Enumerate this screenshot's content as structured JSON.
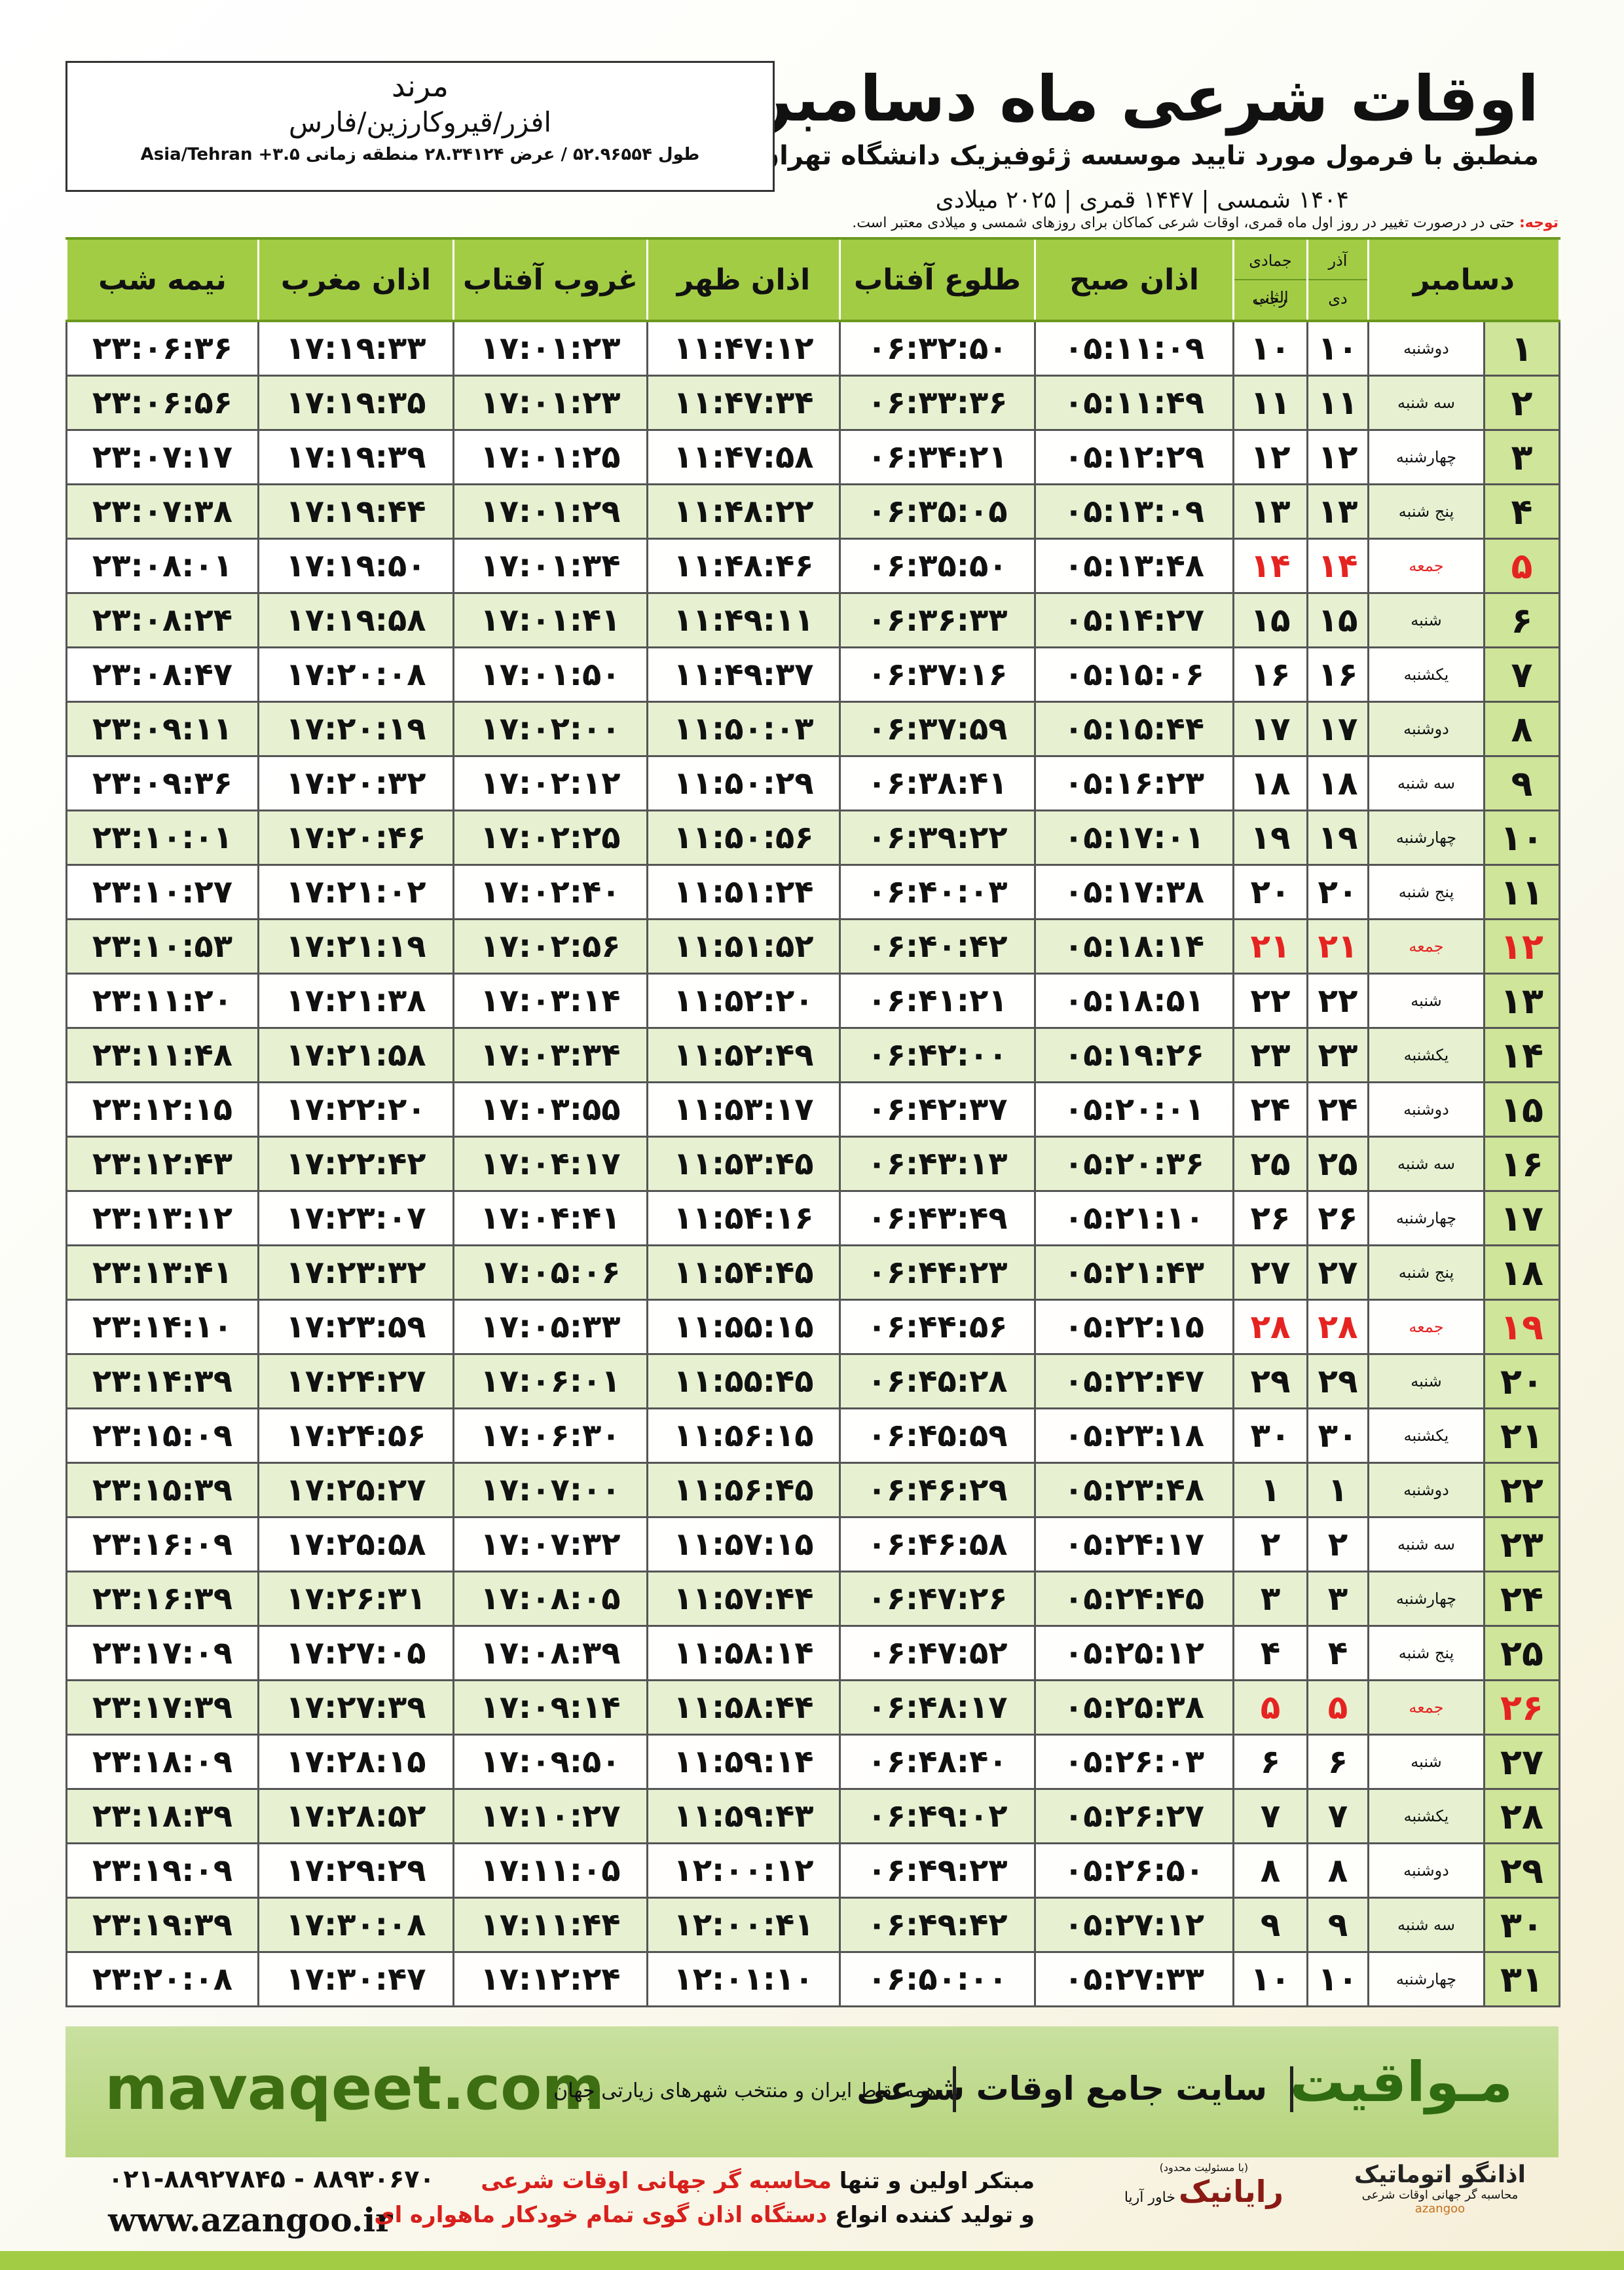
{
  "header": {
    "title": "اوقات شرعی ماه دسامبر",
    "subtitle": "منطبق با فرمول مورد تایید موسسه ژئوفیزیک دانشگاه تهران",
    "dates": "۱۴۰۴ شمسی | ۱۴۴۷ قمری | ۲۰۲۵ میلادی"
  },
  "location": {
    "city": "مرند",
    "path": "افزر/قیروکارزین/فارس",
    "coords": "طول ۵۲.۹۶۵۵۴ / عرض ۲۸.۳۴۱۲۴ منطقه زمانی ۳.۵+ Asia/Tehran"
  },
  "note": {
    "label": "توجه:",
    "text": "حتی در درصورت تغییر در روز اول ماه قمری، اوقات شرعی کماکان برای روزهای شمسی و میلادی معتبر است."
  },
  "table": {
    "headers": [
      "دسامبر",
      {
        "top": "آذر",
        "bottom": "دی"
      },
      {
        "top": "جمادی الثانی",
        "bottom": "رجب"
      },
      "اذان صبح",
      "طلوع آفتاب",
      "اذان ظهر",
      "غروب آفتاب",
      "اذان مغرب",
      "نیمه شب"
    ],
    "rows": [
      [
        "۱",
        "دوشنبه",
        "۱۰",
        "۱۰",
        "۰۵:۱۱:۰۹",
        "۰۶:۳۲:۵۰",
        "۱۱:۴۷:۱۲",
        "۱۷:۰۱:۲۳",
        "۱۷:۱۹:۳۳",
        "۲۳:۰۶:۳۶"
      ],
      [
        "۲",
        "سه شنبه",
        "۱۱",
        "۱۱",
        "۰۵:۱۱:۴۹",
        "۰۶:۳۳:۳۶",
        "۱۱:۴۷:۳۴",
        "۱۷:۰۱:۲۳",
        "۱۷:۱۹:۳۵",
        "۲۳:۰۶:۵۶"
      ],
      [
        "۳",
        "چهارشنبه",
        "۱۲",
        "۱۲",
        "۰۵:۱۲:۲۹",
        "۰۶:۳۴:۲۱",
        "۱۱:۴۷:۵۸",
        "۱۷:۰۱:۲۵",
        "۱۷:۱۹:۳۹",
        "۲۳:۰۷:۱۷"
      ],
      [
        "۴",
        "پنج شنبه",
        "۱۳",
        "۱۳",
        "۰۵:۱۳:۰۹",
        "۰۶:۳۵:۰۵",
        "۱۱:۴۸:۲۲",
        "۱۷:۰۱:۲۹",
        "۱۷:۱۹:۴۴",
        "۲۳:۰۷:۳۸"
      ],
      [
        "۵",
        "جمعه",
        "۱۴",
        "۱۴",
        "۰۵:۱۳:۴۸",
        "۰۶:۳۵:۵۰",
        "۱۱:۴۸:۴۶",
        "۱۷:۰۱:۳۴",
        "۱۷:۱۹:۵۰",
        "۲۳:۰۸:۰۱"
      ],
      [
        "۶",
        "شنبه",
        "۱۵",
        "۱۵",
        "۰۵:۱۴:۲۷",
        "۰۶:۳۶:۳۳",
        "۱۱:۴۹:۱۱",
        "۱۷:۰۱:۴۱",
        "۱۷:۱۹:۵۸",
        "۲۳:۰۸:۲۴"
      ],
      [
        "۷",
        "یکشنبه",
        "۱۶",
        "۱۶",
        "۰۵:۱۵:۰۶",
        "۰۶:۳۷:۱۶",
        "۱۱:۴۹:۳۷",
        "۱۷:۰۱:۵۰",
        "۱۷:۲۰:۰۸",
        "۲۳:۰۸:۴۷"
      ],
      [
        "۸",
        "دوشنبه",
        "۱۷",
        "۱۷",
        "۰۵:۱۵:۴۴",
        "۰۶:۳۷:۵۹",
        "۱۱:۵۰:۰۳",
        "۱۷:۰۲:۰۰",
        "۱۷:۲۰:۱۹",
        "۲۳:۰۹:۱۱"
      ],
      [
        "۹",
        "سه شنبه",
        "۱۸",
        "۱۸",
        "۰۵:۱۶:۲۳",
        "۰۶:۳۸:۴۱",
        "۱۱:۵۰:۲۹",
        "۱۷:۰۲:۱۲",
        "۱۷:۲۰:۳۲",
        "۲۳:۰۹:۳۶"
      ],
      [
        "۱۰",
        "چهارشنبه",
        "۱۹",
        "۱۹",
        "۰۵:۱۷:۰۱",
        "۰۶:۳۹:۲۲",
        "۱۱:۵۰:۵۶",
        "۱۷:۰۲:۲۵",
        "۱۷:۲۰:۴۶",
        "۲۳:۱۰:۰۱"
      ],
      [
        "۱۱",
        "پنج شنبه",
        "۲۰",
        "۲۰",
        "۰۵:۱۷:۳۸",
        "۰۶:۴۰:۰۳",
        "۱۱:۵۱:۲۴",
        "۱۷:۰۲:۴۰",
        "۱۷:۲۱:۰۲",
        "۲۳:۱۰:۲۷"
      ],
      [
        "۱۲",
        "جمعه",
        "۲۱",
        "۲۱",
        "۰۵:۱۸:۱۴",
        "۰۶:۴۰:۴۲",
        "۱۱:۵۱:۵۲",
        "۱۷:۰۲:۵۶",
        "۱۷:۲۱:۱۹",
        "۲۳:۱۰:۵۳"
      ],
      [
        "۱۳",
        "شنبه",
        "۲۲",
        "۲۲",
        "۰۵:۱۸:۵۱",
        "۰۶:۴۱:۲۱",
        "۱۱:۵۲:۲۰",
        "۱۷:۰۳:۱۴",
        "۱۷:۲۱:۳۸",
        "۲۳:۱۱:۲۰"
      ],
      [
        "۱۴",
        "یکشنبه",
        "۲۳",
        "۲۳",
        "۰۵:۱۹:۲۶",
        "۰۶:۴۲:۰۰",
        "۱۱:۵۲:۴۹",
        "۱۷:۰۳:۳۴",
        "۱۷:۲۱:۵۸",
        "۲۳:۱۱:۴۸"
      ],
      [
        "۱۵",
        "دوشنبه",
        "۲۴",
        "۲۴",
        "۰۵:۲۰:۰۱",
        "۰۶:۴۲:۳۷",
        "۱۱:۵۳:۱۷",
        "۱۷:۰۳:۵۵",
        "۱۷:۲۲:۲۰",
        "۲۳:۱۲:۱۵"
      ],
      [
        "۱۶",
        "سه شنبه",
        "۲۵",
        "۲۵",
        "۰۵:۲۰:۳۶",
        "۰۶:۴۳:۱۳",
        "۱۱:۵۳:۴۵",
        "۱۷:۰۴:۱۷",
        "۱۷:۲۲:۴۲",
        "۲۳:۱۲:۴۳"
      ],
      [
        "۱۷",
        "چهارشنبه",
        "۲۶",
        "۲۶",
        "۰۵:۲۱:۱۰",
        "۰۶:۴۳:۴۹",
        "۱۱:۵۴:۱۶",
        "۱۷:۰۴:۴۱",
        "۱۷:۲۳:۰۷",
        "۲۳:۱۳:۱۲"
      ],
      [
        "۱۸",
        "پنج شنبه",
        "۲۷",
        "۲۷",
        "۰۵:۲۱:۴۳",
        "۰۶:۴۴:۲۳",
        "۱۱:۵۴:۴۵",
        "۱۷:۰۵:۰۶",
        "۱۷:۲۳:۳۲",
        "۲۳:۱۳:۴۱"
      ],
      [
        "۱۹",
        "جمعه",
        "۲۸",
        "۲۸",
        "۰۵:۲۲:۱۵",
        "۰۶:۴۴:۵۶",
        "۱۱:۵۵:۱۵",
        "۱۷:۰۵:۳۳",
        "۱۷:۲۳:۵۹",
        "۲۳:۱۴:۱۰"
      ],
      [
        "۲۰",
        "شنبه",
        "۲۹",
        "۲۹",
        "۰۵:۲۲:۴۷",
        "۰۶:۴۵:۲۸",
        "۱۱:۵۵:۴۵",
        "۱۷:۰۶:۰۱",
        "۱۷:۲۴:۲۷",
        "۲۳:۱۴:۳۹"
      ],
      [
        "۲۱",
        "یکشنبه",
        "۳۰",
        "۳۰",
        "۰۵:۲۳:۱۸",
        "۰۶:۴۵:۵۹",
        "۱۱:۵۶:۱۵",
        "۱۷:۰۶:۳۰",
        "۱۷:۲۴:۵۶",
        "۲۳:۱۵:۰۹"
      ],
      [
        "۲۲",
        "دوشنبه",
        "۱",
        "۱",
        "۰۵:۲۳:۴۸",
        "۰۶:۴۶:۲۹",
        "۱۱:۵۶:۴۵",
        "۱۷:۰۷:۰۰",
        "۱۷:۲۵:۲۷",
        "۲۳:۱۵:۳۹"
      ],
      [
        "۲۳",
        "سه شنبه",
        "۲",
        "۲",
        "۰۵:۲۴:۱۷",
        "۰۶:۴۶:۵۸",
        "۱۱:۵۷:۱۵",
        "۱۷:۰۷:۳۲",
        "۱۷:۲۵:۵۸",
        "۲۳:۱۶:۰۹"
      ],
      [
        "۲۴",
        "چهارشنبه",
        "۳",
        "۳",
        "۰۵:۲۴:۴۵",
        "۰۶:۴۷:۲۶",
        "۱۱:۵۷:۴۴",
        "۱۷:۰۸:۰۵",
        "۱۷:۲۶:۳۱",
        "۲۳:۱۶:۳۹"
      ],
      [
        "۲۵",
        "پنج شنبه",
        "۴",
        "۴",
        "۰۵:۲۵:۱۲",
        "۰۶:۴۷:۵۲",
        "۱۱:۵۸:۱۴",
        "۱۷:۰۸:۳۹",
        "۱۷:۲۷:۰۵",
        "۲۳:۱۷:۰۹"
      ],
      [
        "۲۶",
        "جمعه",
        "۵",
        "۵",
        "۰۵:۲۵:۳۸",
        "۰۶:۴۸:۱۷",
        "۱۱:۵۸:۴۴",
        "۱۷:۰۹:۱۴",
        "۱۷:۲۷:۳۹",
        "۲۳:۱۷:۳۹"
      ],
      [
        "۲۷",
        "شنبه",
        "۶",
        "۶",
        "۰۵:۲۶:۰۳",
        "۰۶:۴۸:۴۰",
        "۱۱:۵۹:۱۴",
        "۱۷:۰۹:۵۰",
        "۱۷:۲۸:۱۵",
        "۲۳:۱۸:۰۹"
      ],
      [
        "۲۸",
        "یکشنبه",
        "۷",
        "۷",
        "۰۵:۲۶:۲۷",
        "۰۶:۴۹:۰۲",
        "۱۱:۵۹:۴۳",
        "۱۷:۱۰:۲۷",
        "۱۷:۲۸:۵۲",
        "۲۳:۱۸:۳۹"
      ],
      [
        "۲۹",
        "دوشنبه",
        "۸",
        "۸",
        "۰۵:۲۶:۵۰",
        "۰۶:۴۹:۲۳",
        "۱۲:۰۰:۱۲",
        "۱۷:۱۱:۰۵",
        "۱۷:۲۹:۲۹",
        "۲۳:۱۹:۰۹"
      ],
      [
        "۳۰",
        "سه شنبه",
        "۹",
        "۹",
        "۰۵:۲۷:۱۲",
        "۰۶:۴۹:۴۲",
        "۱۲:۰۰:۴۱",
        "۱۷:۱۱:۴۴",
        "۱۷:۳۰:۰۸",
        "۲۳:۱۹:۳۹"
      ],
      [
        "۳۱",
        "چهارشنبه",
        "۱۰",
        "۱۰",
        "۰۵:۲۷:۳۳",
        "۰۶:۵۰:۰۰",
        "۱۲:۰۱:۱۰",
        "۱۷:۱۲:۲۴",
        "۱۷:۳۰:۴۷",
        "۲۳:۲۰:۰۸"
      ]
    ]
  },
  "footer": {
    "site": "mavaqeet.com",
    "brand": "مـواقیت",
    "slogan": "سایت جامع اوقات شرعی",
    "tagline": "همه نقاط ایران و منتخب شهرهای زیارتی جهان"
  },
  "contact": {
    "phones": "۰۲۱-۸۸۹۲۷۸۴۵ - ۸۸۹۳۰۶۷۰",
    "web": "www.azangoo.ir",
    "line1_a": "مبتکر اولین و تنها",
    "line1_b": "محاسبه گر جهانی اوقات شرعی",
    "line2_a": "و تولید کننده انواع",
    "line2_b": "دستگاه اذان گوی تمام خودکار ماهواره ای"
  },
  "logos": {
    "rayanik": "رایانیک",
    "khavar": "خاور آریا",
    "limited": "(با مسئولیت محدود)",
    "azangoo_fa": "اذانگو اتوماتیک",
    "azangoo_sub": "محاسبه گر جهانی اوقات شرعی",
    "azangoo_en": "azangoo"
  }
}
